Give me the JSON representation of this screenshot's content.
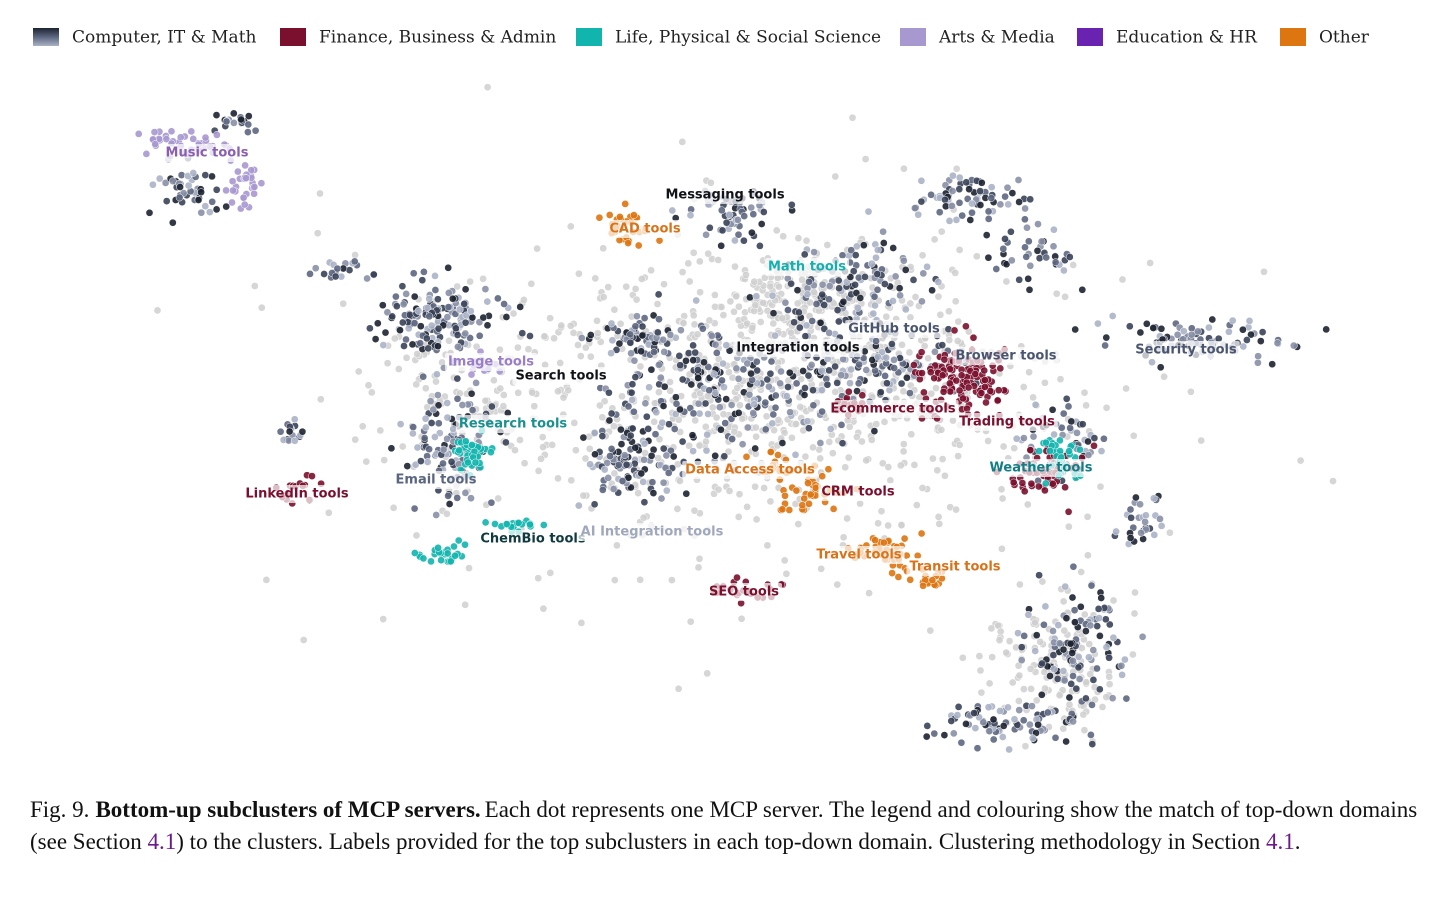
{
  "legend": [
    {
      "name": "Computer, IT & Math",
      "color": "#2a3142"
    },
    {
      "name": "Finance, Business & Admin",
      "color": "#7a0f2e"
    },
    {
      "name": "Life, Physical & Social Science",
      "color": "#12b5ae"
    },
    {
      "name": "Arts & Media",
      "color": "#a898d0"
    },
    {
      "name": "Education & HR",
      "color": "#6a22b0"
    },
    {
      "name": "Other",
      "color": "#dd7611"
    }
  ],
  "cluster_labels": [
    {
      "text": "Music tools",
      "color": "#8a5fb0"
    },
    {
      "text": "Messaging tools",
      "color": "#111318"
    },
    {
      "text": "CAD tools",
      "color": "#d9731a"
    },
    {
      "text": "Math tools",
      "color": "#14b0b0"
    },
    {
      "text": "GitHub tools",
      "color": "#4a5570"
    },
    {
      "text": "Integration tools",
      "color": "#111318"
    },
    {
      "text": "Browser tools",
      "color": "#4a5570"
    },
    {
      "text": "Security tools",
      "color": "#4a5570"
    },
    {
      "text": "Image tools",
      "color": "#9a7fc8"
    },
    {
      "text": "Search tools",
      "color": "#111318"
    },
    {
      "text": "Ecommerce tools",
      "color": "#7a0f2e"
    },
    {
      "text": "Trading tools",
      "color": "#7a0f2e"
    },
    {
      "text": "Research tools",
      "color": "#1a9090"
    },
    {
      "text": "Data Access tools",
      "color": "#d9731a"
    },
    {
      "text": "Weather tools",
      "color": "#127d85"
    },
    {
      "text": "Email tools",
      "color": "#5a6580"
    },
    {
      "text": "LinkedIn tools",
      "color": "#7a0f2e"
    },
    {
      "text": "CRM tools",
      "color": "#7a0f2e"
    },
    {
      "text": "ChemBio tools",
      "color": "#0f3a40"
    },
    {
      "text": "AI Integration tools",
      "color": "#a0a8bc"
    },
    {
      "text": "Travel tools",
      "color": "#d9731a"
    },
    {
      "text": "Transit tools",
      "color": "#d9731a"
    },
    {
      "text": "SEO tools",
      "color": "#7a0f2e"
    }
  ],
  "caption": {
    "label": "Fig. 9.",
    "title": "Bottom-up subclusters of MCP servers.",
    "parts": [
      "Each dot represents one MCP server. The legend and colouring show the match of top-down domains (see Section ",
      "4.1",
      ") to the clusters. Labels provided for the top subclusters in each top-down domain. Clustering methodology in Section ",
      "4.1",
      "."
    ]
  }
}
